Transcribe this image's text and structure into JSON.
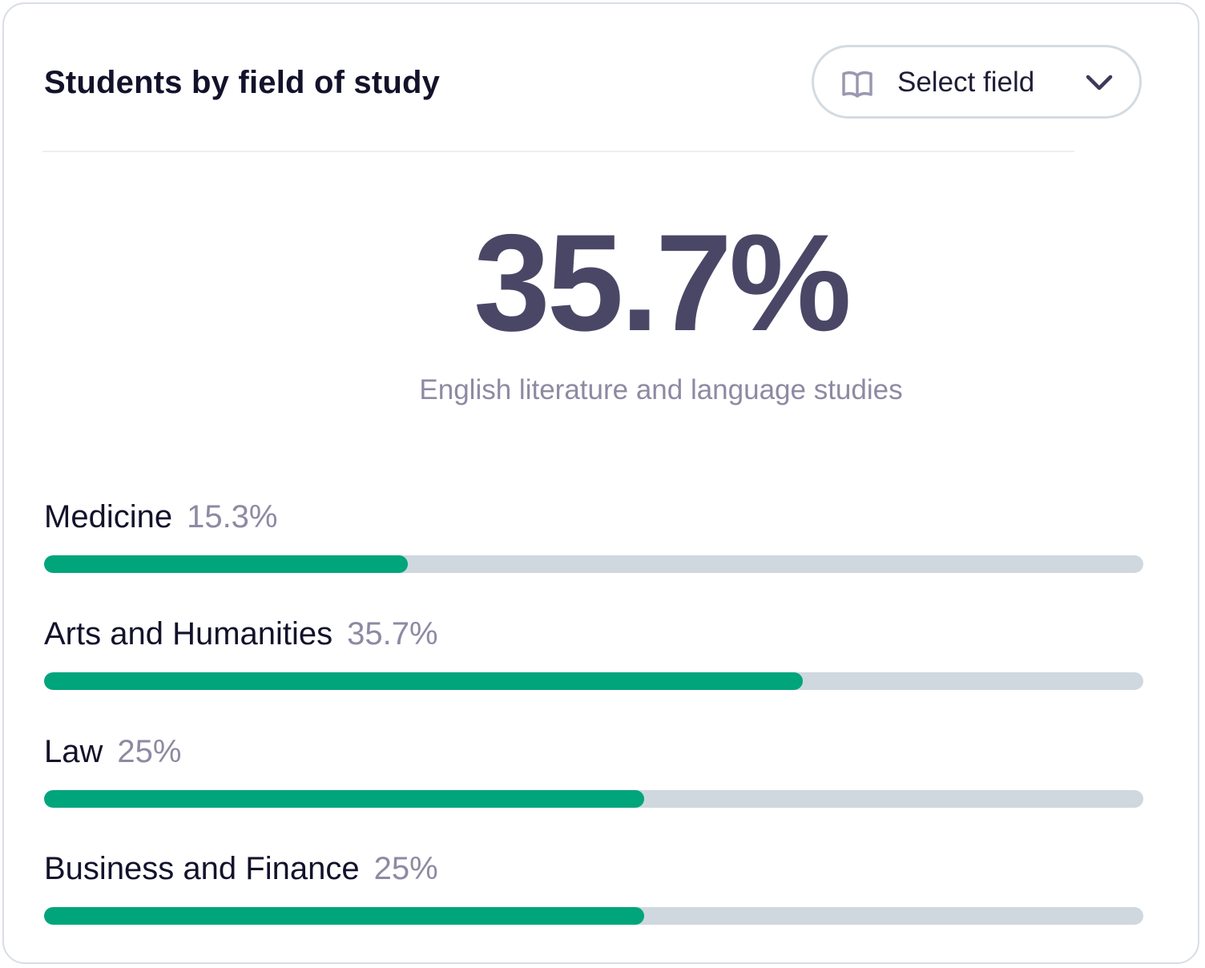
{
  "card": {
    "title": "Students by field of study",
    "select": {
      "icon": "book-icon",
      "label": "Select field",
      "chevron": "chevron-down-icon"
    },
    "highlight": {
      "value": "35.7%",
      "caption": "English literature and language studies"
    },
    "rows": [
      {
        "name": "Medicine",
        "percent": "15.3%",
        "fill_fraction": 0.331
      },
      {
        "name": "Arts and Humanities",
        "percent": "35.7%",
        "fill_fraction": 0.69
      },
      {
        "name": "Law",
        "percent": "25%",
        "fill_fraction": 0.546
      },
      {
        "name": "Business and Finance",
        "percent": "25%",
        "fill_fraction": 0.546
      }
    ]
  },
  "colors": {
    "accent": "#00a57c",
    "track": "#cfd8df",
    "title_text": "#13122b",
    "muted_text": "#8d8aa3",
    "highlight_text": "#4a4766"
  }
}
